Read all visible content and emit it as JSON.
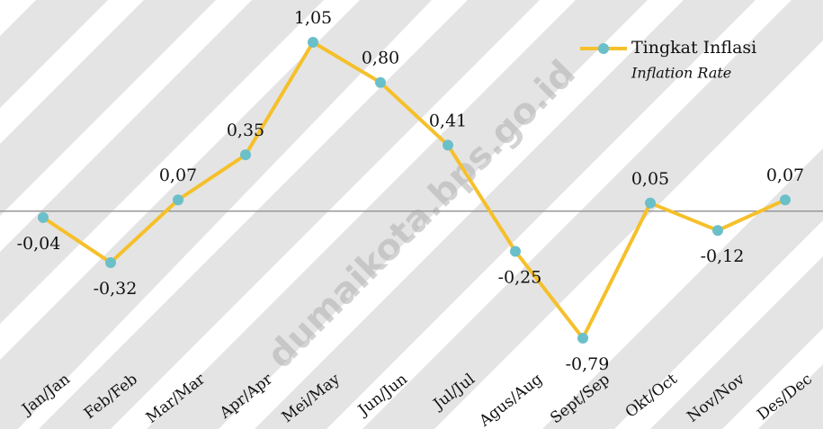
{
  "chart_data": {
    "type": "line",
    "categories": [
      "Jan/Jan",
      "Feb/Feb",
      "Mar/Mar",
      "Apr/Apr",
      "Mei/May",
      "Jun/Jun",
      "Jul/Jul",
      "Agus/Aug",
      "Sept/Sep",
      "Okt/Oct",
      "Nov/Nov",
      "Des/Dec"
    ],
    "series": [
      {
        "name": "Tingkat Inflasi",
        "color": "#f5c02a",
        "marker_color": "#6bbfc9",
        "values": [
          -0.04,
          -0.32,
          0.07,
          0.35,
          1.05,
          0.8,
          0.41,
          -0.25,
          -0.79,
          0.05,
          -0.12,
          0.07
        ],
        "value_labels": [
          "-0,04",
          "-0,32",
          "0,07",
          "0,35",
          "1,05",
          "0,80",
          "0,41",
          "-0,25",
          "-0,79",
          "0,05",
          "-0,12",
          "0,07"
        ]
      }
    ],
    "legend_subtitle": "Inflation Rate",
    "watermark": "dumaikota.bps.go.id"
  }
}
